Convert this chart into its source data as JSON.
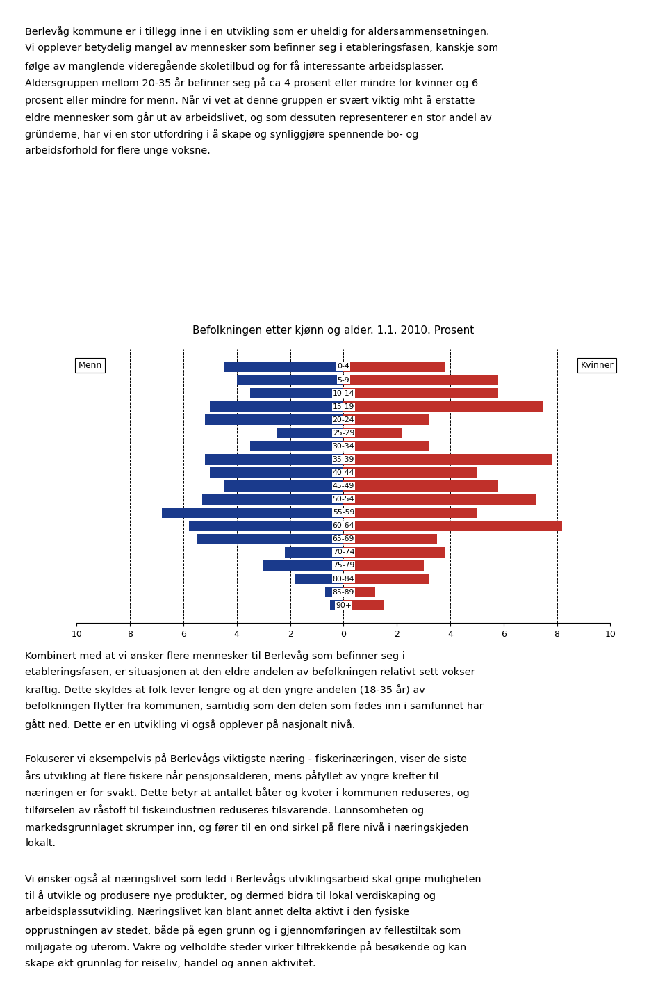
{
  "title": "Befolkningen etter kjønn og alder. 1.1. 2010. Prosent",
  "age_groups": [
    "90+",
    "85-89",
    "80-84",
    "75-79",
    "70-74",
    "65-69",
    "60-64",
    "55-59",
    "50-54",
    "45-49",
    "40-44",
    "35-39",
    "30-34",
    "25-29",
    "20-24",
    "15-19",
    "10-14",
    "5-9",
    "0-4"
  ],
  "men_values": [
    0.5,
    0.7,
    1.8,
    3.0,
    2.2,
    5.5,
    5.8,
    6.8,
    5.3,
    4.5,
    5.0,
    5.2,
    3.5,
    2.5,
    5.2,
    5.0,
    3.5,
    4.0,
    4.5
  ],
  "women_values": [
    1.5,
    1.2,
    3.2,
    3.0,
    3.8,
    3.5,
    8.2,
    5.0,
    7.2,
    5.8,
    5.0,
    7.8,
    3.2,
    2.2,
    3.2,
    7.5,
    5.8,
    5.8,
    3.8
  ],
  "men_color": "#1a3a8c",
  "women_color": "#c0302a",
  "background_color": "#ffffff",
  "label_left": "Menn",
  "label_right": "Kvinner",
  "xlim": 10,
  "xtick_positions": [
    -10,
    -8,
    -6,
    -4,
    -2,
    0,
    2,
    4,
    6,
    8,
    10
  ],
  "xtick_labels": [
    "10",
    "8",
    "6",
    "4",
    "2",
    "0",
    "2",
    "4",
    "6",
    "8",
    "10"
  ],
  "dashed_lines": [
    -8,
    -6,
    -4,
    -2,
    0,
    2,
    4,
    6,
    8
  ],
  "text_para1": "Berlevåg kommune er i tillegg inne i en utvikling som er uheldig for aldersammensetningen. Vi opplever betydelig mangel av mennesker som befinner seg i etableringsfasen, kanskje som følge av manglende videregående skoletilbud og for få interessante arbeidsplasser. Aldersgruppen mellom 20-35 år befinner seg på ca 4 prosent eller mindre for kvinner og 6 prosent eller mindre for menn. Når vi vet at denne gruppen er svært viktig mht å erstatte eldre mennesker som går ut av arbeidslivet, og som dessuten representerer en stor andel av gründerne, har vi en stor utfordring i å skape og synliggjøre spennende bo- og arbeidsforhold for flere unge voksne.",
  "text_para2": "Kombinert med at vi ønsker flere mennesker til Berlevåg som befinner seg i etableringsfasen, er situasjonen at den eldre andelen av befolkningen relativt sett vokser kraftig. Dette skyldes at folk lever lengre og at den yngre andelen (18-35 år) av befolkningen flytter fra kommunen, samtidig som den delen som fødes inn i samfunnet har gått ned. Dette er en utvikling vi også opplever på nasjonalt nivå.",
  "text_para3": "Fokuserer vi eksempelvis på Berlevågs viktigste næring - fiskerinæringen, viser de siste års utvikling at flere fiskere når pensjonsalderen, mens påfyllet av yngre krefter til næringen er for svakt. Dette betyr at antallet båter og kvoter i kommunen reduseres, og tilførselen av råstoff til fiskeindustrien reduseres tilsvarende. Lønnsomheten og markedsgrunnlaget skrumper inn, og fører til en ond sirkel på flere nivå i næringskjeden lokalt.",
  "text_para4": "Vi ønsker også at næringslivet som ledd i Berlevågs utviklingsarbeid skal gripe muligheten til å utvikle og produsere nye produkter, og dermed bidra til lokal verdiskaping og arbeidsplassutvikling. Næringslivet kan blant annet delta aktivt i den fysiske opprustningen av stedet, både på egen grunn og i gjennomføringen av fellestiltak som miljøgate og uterom. Vakre og velholdte steder virker tiltrekkende på besøkende og kan skape økt grunnlag for reiseliv, handel og annen aktivitet."
}
